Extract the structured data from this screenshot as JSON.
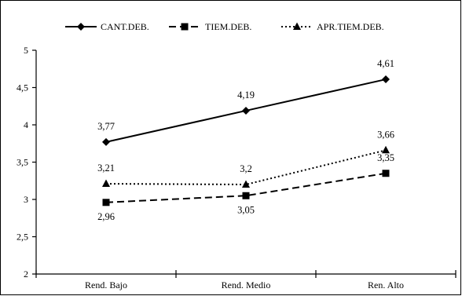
{
  "chart_data": {
    "type": "line",
    "categories": [
      "Rend. Bajo",
      "Rend. Medio",
      "Ren. Alto"
    ],
    "ylim": [
      2,
      5
    ],
    "yticks": [
      2,
      2.5,
      3,
      3.5,
      4,
      4.5,
      5
    ],
    "ytick_labels": [
      "2",
      "2,5",
      "3",
      "3,5",
      "4",
      "4,5",
      "5"
    ],
    "grid": false,
    "legend_position": "top",
    "series": [
      {
        "name": "CANT.DEB.",
        "values": [
          3.77,
          4.19,
          4.61
        ],
        "labels": [
          "3,77",
          "4,19",
          "4,61"
        ],
        "line_style": "solid",
        "marker": "diamond",
        "color": "#000000"
      },
      {
        "name": "TIEM.DEB.",
        "values": [
          2.96,
          3.05,
          3.35
        ],
        "labels": [
          "2,96",
          "3,05",
          "3,35"
        ],
        "line_style": "dashed",
        "marker": "square",
        "color": "#000000"
      },
      {
        "name": "APR.TIEM.DEB.",
        "values": [
          3.21,
          3.2,
          3.66
        ],
        "labels": [
          "3,21",
          "3,2",
          "3,66"
        ],
        "line_style": "dotted",
        "marker": "triangle",
        "color": "#000000"
      }
    ]
  }
}
